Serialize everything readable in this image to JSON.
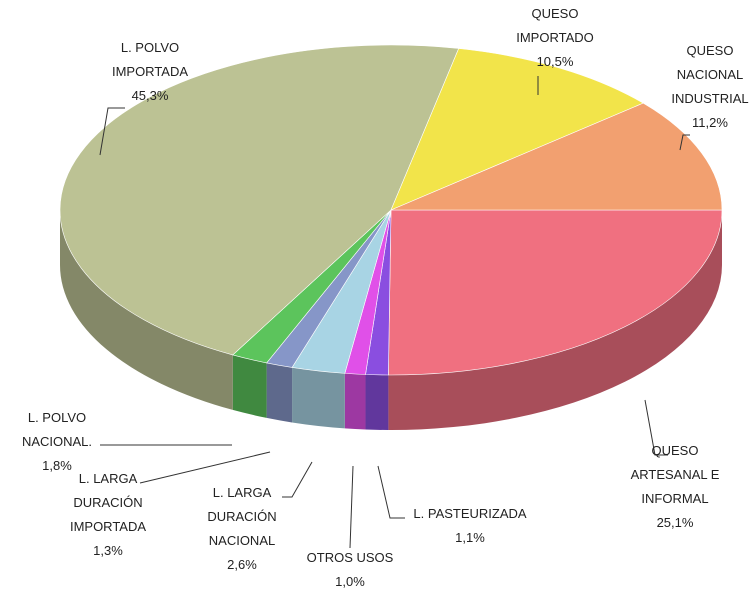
{
  "chart_data": {
    "type": "pie3d",
    "categories": [
      "QUESO\nARTESANAL E\nINFORMAL",
      "L. PASTEURIZADA",
      "OTROS USOS",
      "L. LARGA\nDURACIÓN\nNACIONAL",
      "L. LARGA\nDURACIÓN\nIMPORTADA",
      "L.  POLVO\nNACIONAL.",
      "L. POLVO\nIMPORTADA",
      "QUESO\nIMPORTADO",
      "QUESO\nNACIONAL\nINDUSTRIAL"
    ],
    "values": [
      25.1,
      1.1,
      1.0,
      2.6,
      1.3,
      1.8,
      45.3,
      10.5,
      11.2
    ],
    "value_labels": [
      "25,1%",
      "1,1%",
      "1,0%",
      "2,6%",
      "1,3%",
      "1,8%",
      "45,3%",
      "10,5%",
      "11,2%"
    ],
    "colors": [
      "#f07080",
      "#8a4ee0",
      "#e050e8",
      "#a8d4e4",
      "#8696c8",
      "#5cc45c",
      "#bcc294",
      "#f2e44a",
      "#f2a070"
    ]
  }
}
